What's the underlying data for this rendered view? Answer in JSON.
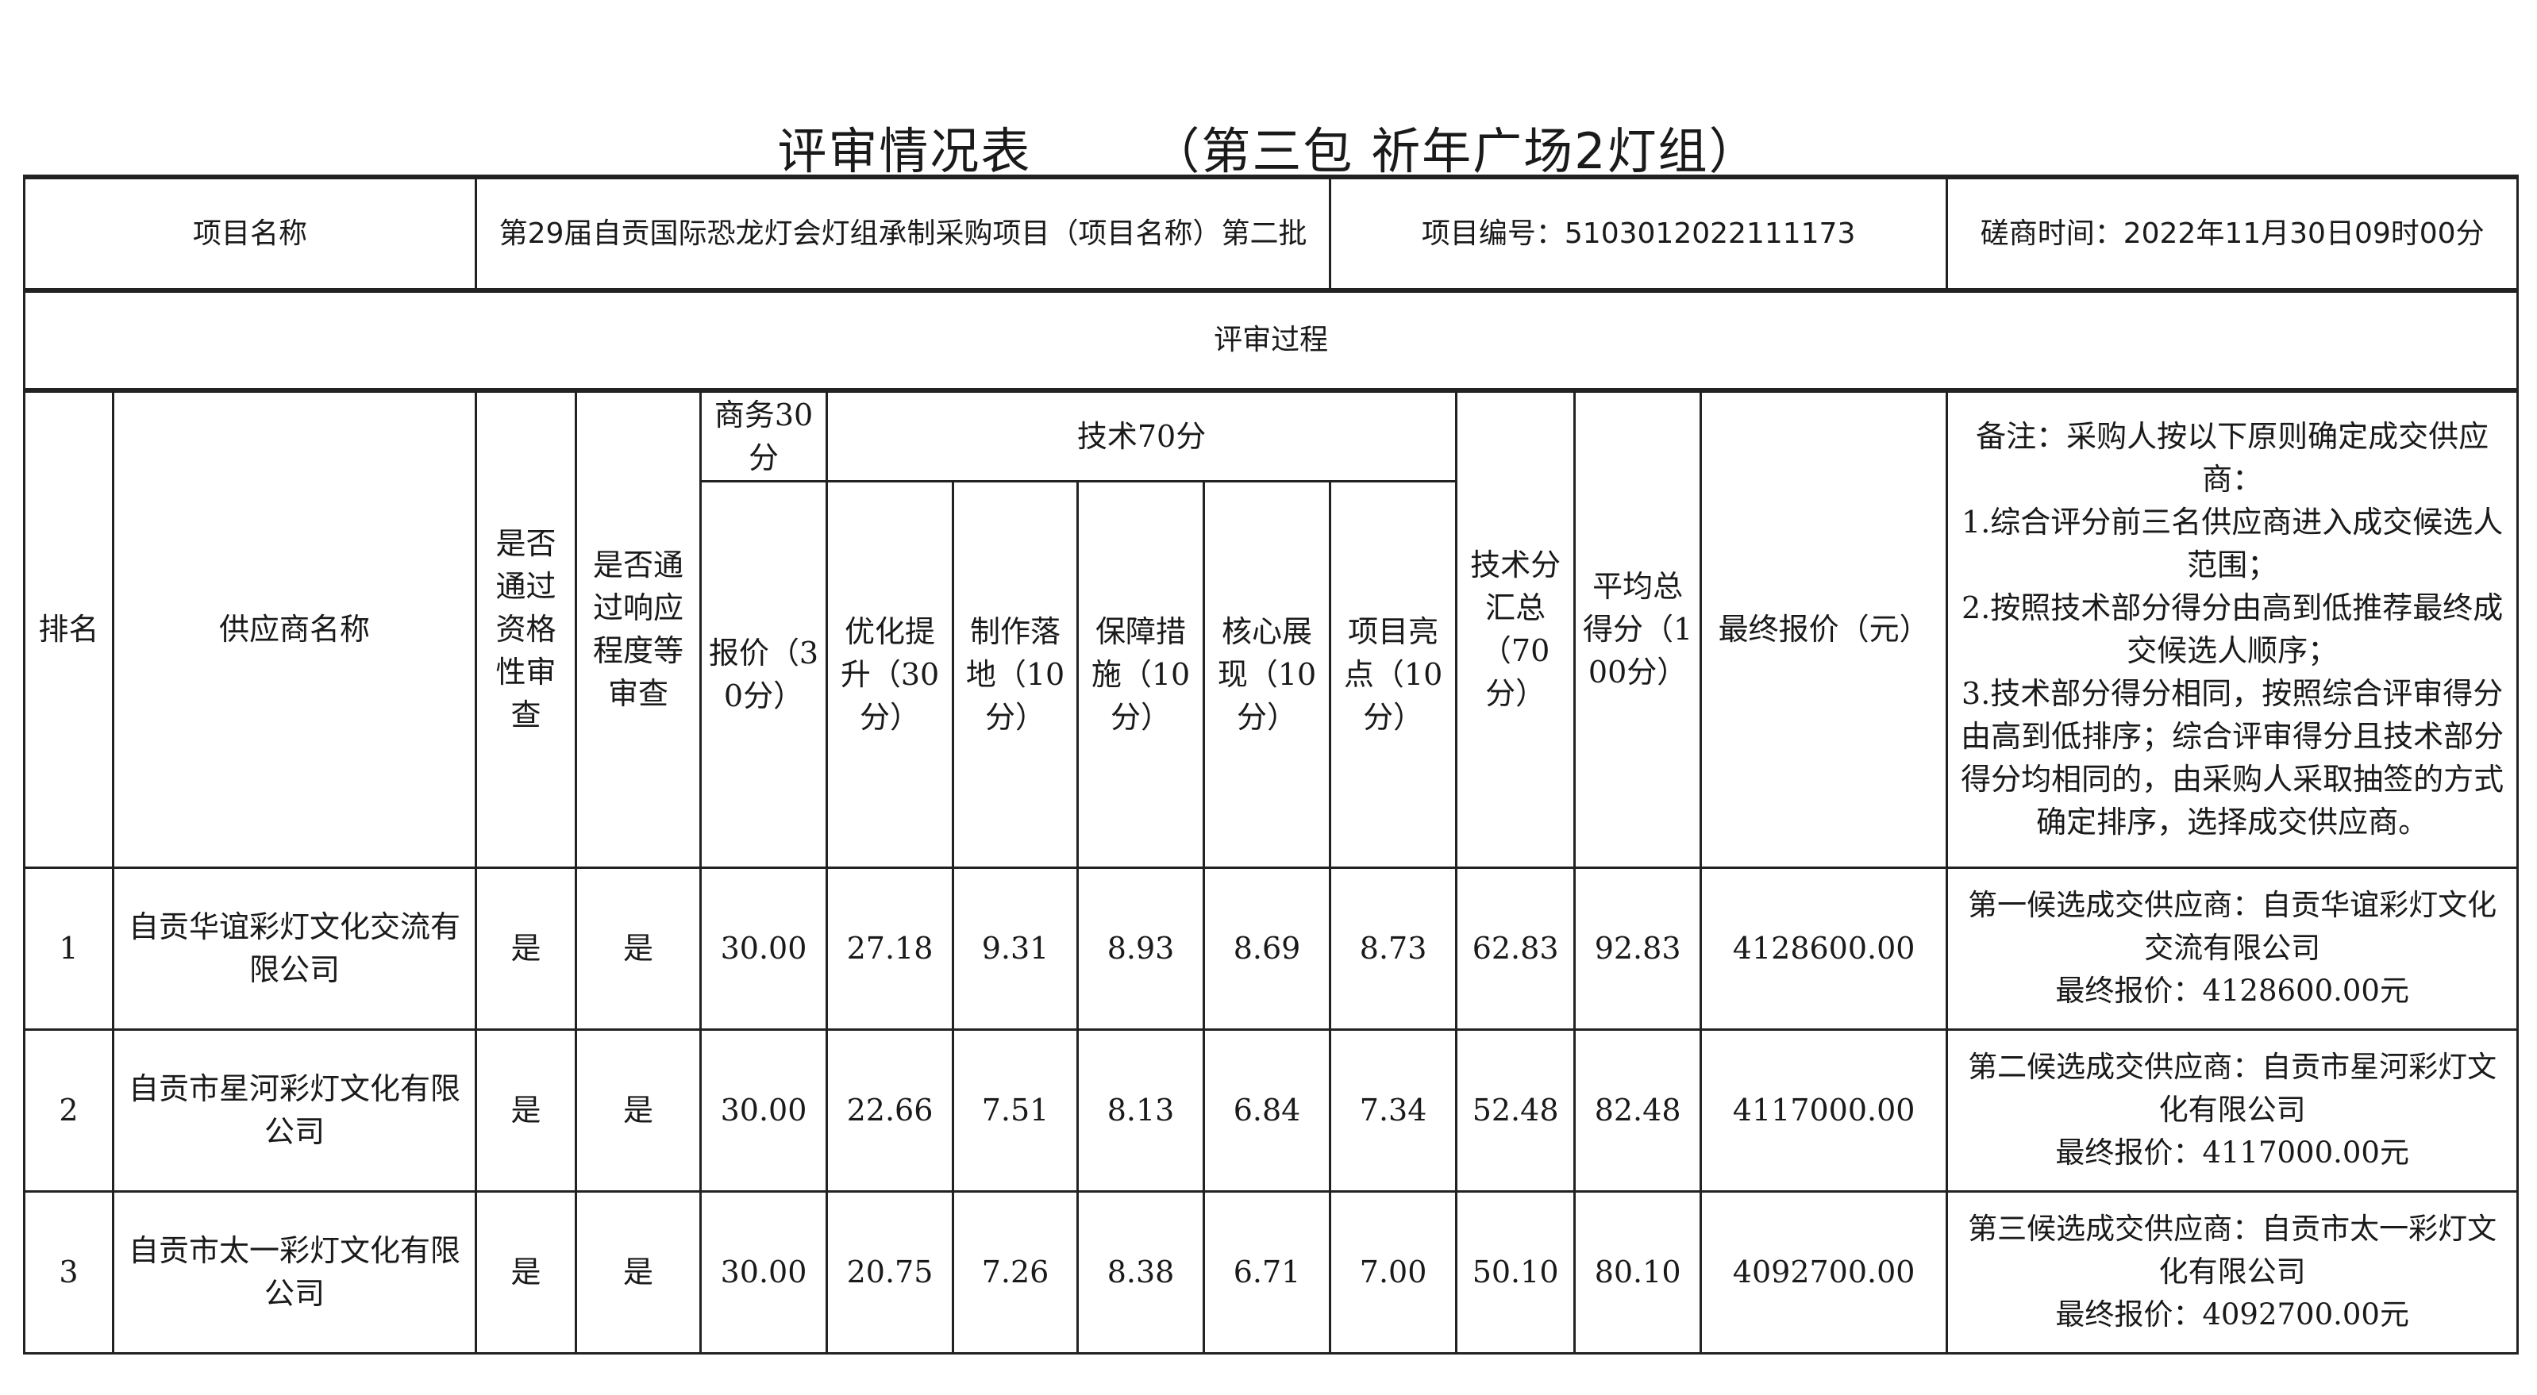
{
  "title": {
    "main": "评审情况表",
    "sub": "（第三包 祈年广场2灯组）"
  },
  "info_row": {
    "label": "项目名称",
    "project_name": "第29届自贡国际恐龙灯会灯组承制采购项目（项目名称）第二批",
    "project_number": "项目编号：5103012022111173",
    "consult_time": "磋商时间：2022年11月30日09时00分"
  },
  "section_title": "评审过程",
  "headers": {
    "rank": "排名",
    "supplier": "供应商名称",
    "qualification": "是否通过资格性审查",
    "responsiveness": "是否通过响应程度等审查",
    "business_group": "商务30分",
    "tech_group": "技术70分",
    "price": "报价（30分）",
    "optimization": "优化提升（30分）",
    "production": "制作落地（10分）",
    "guarantee": "保障措施（10分）",
    "core_display": "核心展现（10分）",
    "highlights": "项目亮点（10分）",
    "tech_total": "技术分汇总（70分）",
    "avg_total": "平均总得分（100分）",
    "final_price": "最终报价（元）",
    "note": "备注：采购人按以下原则确定成交供应商：\n1.综合评分前三名供应商进入成交候选人范围；\n2.按照技术部分得分由高到低推荐最终成交候选人顺序；\n3.技术部分得分相同，按照综合评审得分由高到低排序；综合评审得分且技术部分得分均相同的，由采购人采取抽签的方式确定排序，选择成交供应商。"
  },
  "rows": [
    {
      "rank": "1",
      "supplier": "自贡华谊彩灯文化交流有限公司",
      "qualification": "是",
      "responsiveness": "是",
      "price": "30.00",
      "optimization": "27.18",
      "production": "9.31",
      "guarantee": "8.93",
      "core_display": "8.69",
      "highlights": "8.73",
      "tech_total": "62.83",
      "avg_total": "92.83",
      "final_price": "4128600.00",
      "candidate": "第一候选成交供应商：自贡华谊彩灯文化交流有限公司",
      "candidate_price": "最终报价：4128600.00元"
    },
    {
      "rank": "2",
      "supplier": "自贡市星河彩灯文化有限公司",
      "qualification": "是",
      "responsiveness": "是",
      "price": "30.00",
      "optimization": "22.66",
      "production": "7.51",
      "guarantee": "8.13",
      "core_display": "6.84",
      "highlights": "7.34",
      "tech_total": "52.48",
      "avg_total": "82.48",
      "final_price": "4117000.00",
      "candidate": "第二候选成交供应商：自贡市星河彩灯文化有限公司",
      "candidate_price": "最终报价：4117000.00元"
    },
    {
      "rank": "3",
      "supplier": "自贡市太一彩灯文化有限公司",
      "qualification": "是",
      "responsiveness": "是",
      "price": "30.00",
      "optimization": "20.75",
      "production": "7.26",
      "guarantee": "8.38",
      "core_display": "6.71",
      "highlights": "7.00",
      "tech_total": "50.10",
      "avg_total": "80.10",
      "final_price": "4092700.00",
      "candidate": "第三候选成交供应商：自贡市太一彩灯文化有限公司",
      "candidate_price": "最终报价：4092700.00元"
    }
  ]
}
